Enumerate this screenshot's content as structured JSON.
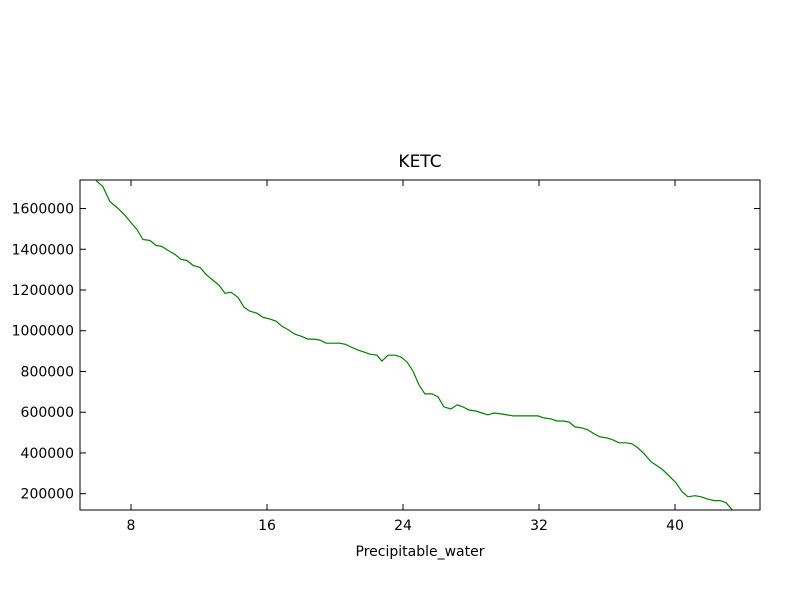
{
  "chart_data": {
    "type": "line",
    "title": "KETC",
    "x_label": "Precipitable_water",
    "xlim": [
      5,
      45
    ],
    "ylim": [
      120000,
      1740000
    ],
    "xticks": [
      8,
      16,
      24,
      32,
      40
    ],
    "yticks": [
      200000,
      400000,
      600000,
      800000,
      1000000,
      1200000,
      1400000,
      1600000
    ],
    "series": [
      {
        "color": "#008000",
        "x": [
          5.94,
          6.35,
          6.76,
          7.24,
          7.65,
          8.0,
          8.35,
          8.7,
          9.12,
          9.47,
          9.82,
          10.18,
          10.59,
          10.94,
          11.29,
          11.65,
          12.06,
          12.41,
          12.76,
          13.18,
          13.53,
          13.88,
          14.29,
          14.65,
          15.0,
          15.41,
          15.76,
          16.18,
          16.53,
          16.88,
          17.29,
          17.65,
          18.0,
          18.41,
          18.76,
          19.12,
          19.47,
          19.88,
          20.24,
          20.59,
          20.94,
          21.35,
          21.71,
          22.06,
          22.47,
          22.76,
          23.12,
          23.53,
          23.88,
          24.24,
          24.59,
          24.94,
          25.29,
          25.71,
          26.06,
          26.41,
          26.82,
          27.18,
          27.53,
          27.88,
          28.29,
          28.65,
          29.0,
          29.35,
          29.76,
          30.12,
          30.47,
          30.88,
          31.24,
          31.59,
          31.94,
          32.29,
          32.71,
          33.06,
          33.41,
          33.76,
          34.12,
          34.53,
          34.88,
          35.24,
          35.59,
          36.0,
          36.35,
          36.71,
          37.12,
          37.47,
          37.82,
          38.18,
          38.59,
          38.94,
          39.29,
          39.65,
          40.06,
          40.41,
          40.76,
          41.18,
          41.53,
          41.88,
          42.29,
          42.65,
          43.0,
          43.35
        ],
        "values": [
          1737000,
          1707700,
          1634000,
          1600000,
          1566000,
          1531000,
          1497000,
          1448000,
          1443000,
          1419000,
          1414000,
          1394000,
          1375000,
          1350000,
          1345000,
          1321000,
          1311000,
          1277000,
          1252000,
          1223000,
          1184000,
          1189000,
          1164000,
          1115000,
          1096000,
          1086000,
          1066000,
          1057000,
          1047000,
          1022000,
          1003000,
          983000,
          973000,
          959000,
          959000,
          954000,
          939000,
          939000,
          939000,
          934000,
          920000,
          905000,
          895000,
          885000,
          880000,
          851000,
          880000,
          880000,
          871000,
          846000,
          802000,
          734000,
          690000,
          690000,
          675000,
          626000,
          616000,
          636000,
          626000,
          611000,
          606000,
          596000,
          587000,
          596000,
          592000,
          587000,
          582000,
          582000,
          582000,
          582000,
          582000,
          572000,
          567000,
          557000,
          557000,
          552000,
          528000,
          523000,
          513000,
          494000,
          479000,
          474000,
          464000,
          450000,
          450000,
          445000,
          425000,
          396000,
          357000,
          337000,
          317000,
          288000,
          254000,
          210000,
          185000,
          190000,
          185000,
          175000,
          166000,
          166000,
          156000,
          122000
        ]
      }
    ]
  }
}
